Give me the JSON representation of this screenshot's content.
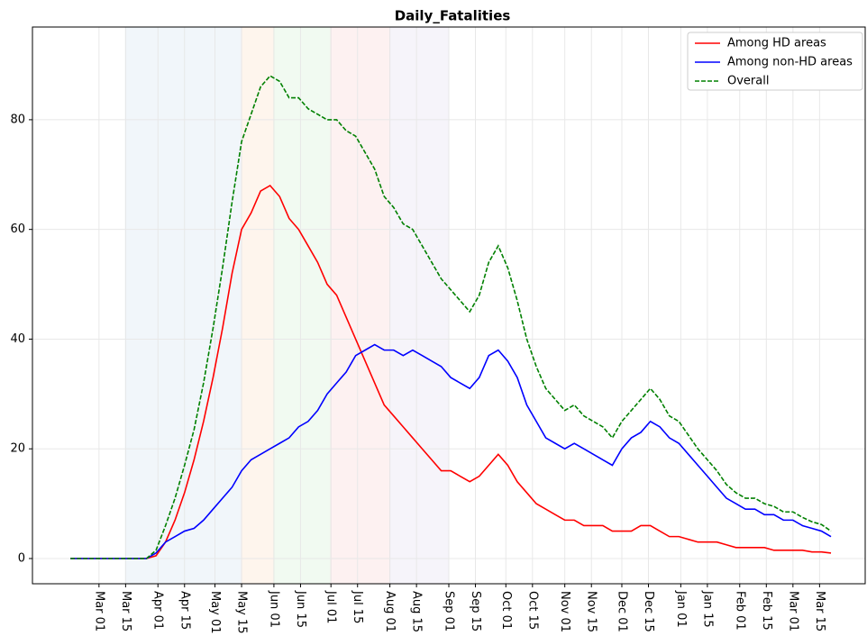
{
  "chart_data": {
    "type": "line",
    "title": "Daily_Fatalities",
    "x": [
      -15,
      -10,
      -5,
      0,
      5,
      10,
      15,
      20,
      25,
      30,
      35,
      40,
      45,
      50,
      55,
      60,
      65,
      70,
      75,
      80,
      85,
      90,
      95,
      100,
      105,
      110,
      115,
      120,
      125,
      130,
      135,
      140,
      145,
      150,
      155,
      160,
      165,
      170,
      175,
      180,
      185,
      190,
      195,
      200,
      205,
      210,
      215,
      220,
      225,
      230,
      235,
      240,
      245,
      250,
      255,
      260,
      265,
      270,
      275,
      280,
      285,
      290,
      295,
      300,
      305,
      310,
      315,
      320,
      325,
      330,
      335,
      340,
      345,
      350,
      355,
      360,
      365,
      370,
      375,
      380,
      385
    ],
    "series": [
      {
        "name": "Among HD areas",
        "color": "#ff0000",
        "dash": false,
        "values": [
          0,
          0,
          0,
          0,
          0,
          0,
          0,
          0,
          0,
          0.5,
          3,
          7,
          12,
          18,
          25,
          33,
          42,
          52,
          60,
          63,
          67,
          68,
          66,
          62,
          60,
          57,
          54,
          50,
          48,
          44,
          40,
          36,
          32,
          28,
          26,
          24,
          22,
          20,
          18,
          16,
          16,
          15,
          14,
          15,
          17,
          19,
          17,
          14,
          12,
          10,
          9,
          8,
          7,
          7,
          6,
          6,
          6,
          5,
          5,
          5,
          6,
          6,
          5,
          4,
          4,
          3.5,
          3,
          3,
          3,
          2.5,
          2,
          2,
          2,
          2,
          1.5,
          1.5,
          1.5,
          1.5,
          1.2,
          1.2,
          1
        ]
      },
      {
        "name": "Among non-HD areas",
        "color": "#0000ff",
        "dash": false,
        "values": [
          0,
          0,
          0,
          0,
          0,
          0,
          0,
          0,
          0,
          1,
          3,
          4,
          5,
          5.5,
          7,
          9,
          11,
          13,
          16,
          18,
          19,
          20,
          21,
          22,
          24,
          25,
          27,
          30,
          32,
          34,
          37,
          38,
          39,
          38,
          38,
          37,
          38,
          37,
          36,
          35,
          33,
          32,
          31,
          33,
          37,
          38,
          36,
          33,
          28,
          25,
          22,
          21,
          20,
          21,
          20,
          19,
          18,
          17,
          20,
          22,
          23,
          25,
          24,
          22,
          21,
          19,
          17,
          15,
          13,
          11,
          10,
          9,
          9,
          8,
          8,
          7,
          7,
          6,
          5.5,
          5,
          4
        ]
      },
      {
        "name": "Overall",
        "color": "#008000",
        "dash": true,
        "values": [
          0,
          0,
          0,
          0,
          0,
          0,
          0,
          0,
          0,
          1.5,
          6,
          11,
          17,
          23.5,
          32,
          42,
          53,
          65,
          76,
          81,
          86,
          88,
          87,
          84,
          84,
          82,
          81,
          80,
          80,
          78,
          77,
          74,
          71,
          66,
          64,
          61,
          60,
          57,
          54,
          51,
          49,
          47,
          45,
          48,
          54,
          57,
          53,
          47,
          40,
          35,
          31,
          29,
          27,
          28,
          26,
          25,
          24,
          22,
          25,
          27,
          29,
          31,
          29,
          26,
          25,
          22.5,
          20,
          18,
          16,
          13.5,
          12,
          11,
          11,
          10,
          9.5,
          8.5,
          8.5,
          7.5,
          6.7,
          6.2,
          5
        ]
      }
    ],
    "xlim": [
      -35,
      403
    ],
    "xticks": [
      {
        "value": 0,
        "label": "Mar 01"
      },
      {
        "value": 14,
        "label": "Mar 15"
      },
      {
        "value": 31,
        "label": "Apr 01"
      },
      {
        "value": 45,
        "label": "Apr 15"
      },
      {
        "value": 61,
        "label": "May 01"
      },
      {
        "value": 75,
        "label": "May 15"
      },
      {
        "value": 92,
        "label": "Jun 01"
      },
      {
        "value": 106,
        "label": "Jun 15"
      },
      {
        "value": 122,
        "label": "Jul 01"
      },
      {
        "value": 136,
        "label": "Jul 15"
      },
      {
        "value": 153,
        "label": "Aug 01"
      },
      {
        "value": 167,
        "label": "Aug 15"
      },
      {
        "value": 184,
        "label": "Sep 01"
      },
      {
        "value": 198,
        "label": "Sep 15"
      },
      {
        "value": 214,
        "label": "Oct 01"
      },
      {
        "value": 228,
        "label": "Oct 15"
      },
      {
        "value": 245,
        "label": "Nov 01"
      },
      {
        "value": 259,
        "label": "Nov 15"
      },
      {
        "value": 275,
        "label": "Dec 01"
      },
      {
        "value": 289,
        "label": "Dec 15"
      },
      {
        "value": 306,
        "label": "Jan 01"
      },
      {
        "value": 320,
        "label": "Jan 15"
      },
      {
        "value": 337,
        "label": "Feb 01"
      },
      {
        "value": 351,
        "label": "Feb 15"
      },
      {
        "value": 365,
        "label": "Mar 01"
      },
      {
        "value": 379,
        "label": "Mar 15"
      }
    ],
    "ylim": [
      -4.6,
      96.9
    ],
    "yticks": [
      0,
      20,
      40,
      60,
      80
    ],
    "grid": true,
    "legend": "upper right",
    "spans": [
      {
        "start": 14,
        "end": 75,
        "color": "#d6e6f2"
      },
      {
        "start": 75,
        "end": 92,
        "color": "#fde3cc"
      },
      {
        "start": 92,
        "end": 122,
        "color": "#d6f0d6"
      },
      {
        "start": 122,
        "end": 153,
        "color": "#f8d8d8"
      },
      {
        "start": 153,
        "end": 184,
        "color": "#e6e0f2"
      }
    ]
  }
}
